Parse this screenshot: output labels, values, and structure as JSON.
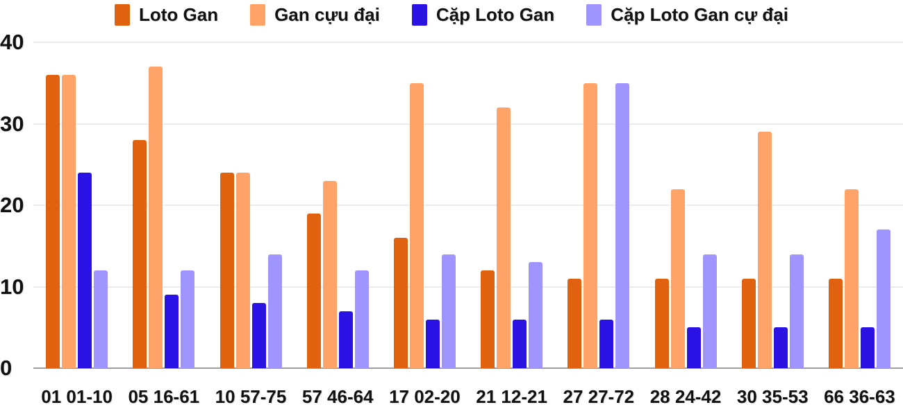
{
  "chart_data": {
    "type": "bar",
    "title": "",
    "xlabel": "",
    "ylabel": "",
    "ylim": [
      0,
      40
    ],
    "yticks": [
      0,
      10,
      20,
      30,
      40
    ],
    "grid": true,
    "legend_position": "top",
    "background_color": "#ffffff",
    "gridline_color": "#ececec",
    "baseline_color": "#9e9e9e",
    "text_color": "#111111",
    "categories": [
      "01 01-10",
      "05 16-61",
      "10 57-75",
      "57 46-64",
      "17 02-20",
      "21 12-21",
      "27 27-72",
      "28 24-42",
      "30 35-53",
      "66 36-63"
    ],
    "series": [
      {
        "name": "Loto Gan",
        "color": "#e1620e",
        "values": [
          36,
          28,
          24,
          19,
          16,
          12,
          11,
          11,
          11,
          11
        ]
      },
      {
        "name": "Gan cựu đại",
        "color": "#ffa369",
        "values": [
          36,
          37,
          24,
          23,
          35,
          32,
          35,
          22,
          29,
          22
        ]
      },
      {
        "name": "Cặp Loto Gan",
        "color": "#2a11e4",
        "values": [
          24,
          9,
          8,
          7,
          6,
          6,
          6,
          5,
          5,
          5
        ]
      },
      {
        "name": "Cặp Loto Gan cự đại",
        "color": "#a094ff",
        "values": [
          12,
          12,
          14,
          12,
          14,
          13,
          35,
          14,
          14,
          17
        ]
      }
    ]
  }
}
